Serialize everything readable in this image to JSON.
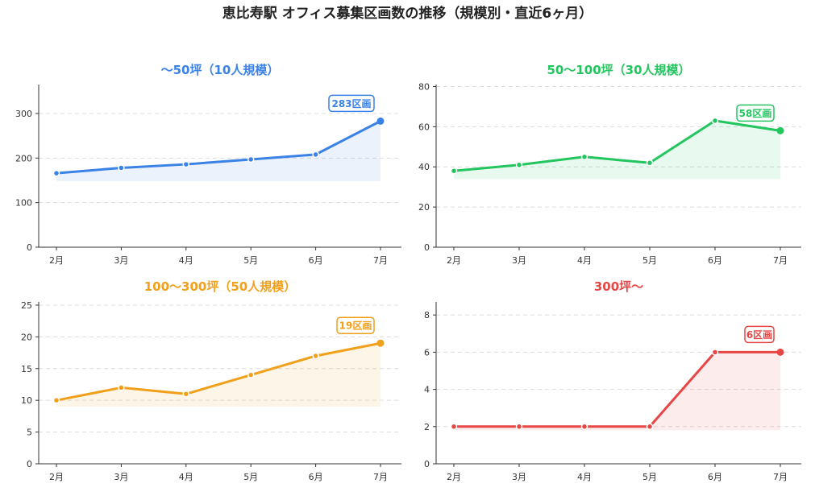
{
  "title": "恵比寿駅 オフィス募集区画数の推移（規模別・直近6ヶ月）",
  "chart_data": [
    {
      "type": "area",
      "title": "〜50坪（10人規模）",
      "color": "#3b82e6",
      "categories": [
        "2月",
        "3月",
        "4月",
        "5月",
        "6月",
        "7月"
      ],
      "values": [
        166,
        178,
        186,
        197,
        208,
        283
      ],
      "ylim": [
        0,
        365
      ],
      "yticks": [
        0,
        100,
        200,
        300
      ],
      "area_baseline": 148,
      "callout": "283区画",
      "grid": true
    },
    {
      "type": "area",
      "title": "50〜100坪（30人規模）",
      "color": "#22c55e",
      "categories": [
        "2月",
        "3月",
        "4月",
        "5月",
        "6月",
        "7月"
      ],
      "values": [
        38,
        41,
        45,
        42,
        63,
        58
      ],
      "ylim": [
        0,
        81
      ],
      "yticks": [
        0,
        20,
        40,
        60,
        80
      ],
      "area_baseline": 34,
      "callout": "58区画",
      "grid": true
    },
    {
      "type": "area",
      "title": "100〜300坪（50人規模）",
      "color": "#f0a01a",
      "categories": [
        "2月",
        "3月",
        "4月",
        "5月",
        "6月",
        "7月"
      ],
      "values": [
        10,
        12,
        11,
        14,
        17,
        19
      ],
      "ylim": [
        0,
        25.5
      ],
      "yticks": [
        0,
        5,
        10,
        15,
        20,
        25
      ],
      "area_baseline": 9,
      "callout": "19区画",
      "grid": true
    },
    {
      "type": "area",
      "title": "300坪〜",
      "color": "#e84545",
      "categories": [
        "2月",
        "3月",
        "4月",
        "5月",
        "6月",
        "7月"
      ],
      "values": [
        2,
        2,
        2,
        2,
        6,
        6
      ],
      "ylim": [
        0,
        8.7
      ],
      "yticks": [
        0,
        2,
        4,
        6,
        8
      ],
      "area_baseline": 1.8,
      "callout": "6区画",
      "grid": true
    }
  ]
}
